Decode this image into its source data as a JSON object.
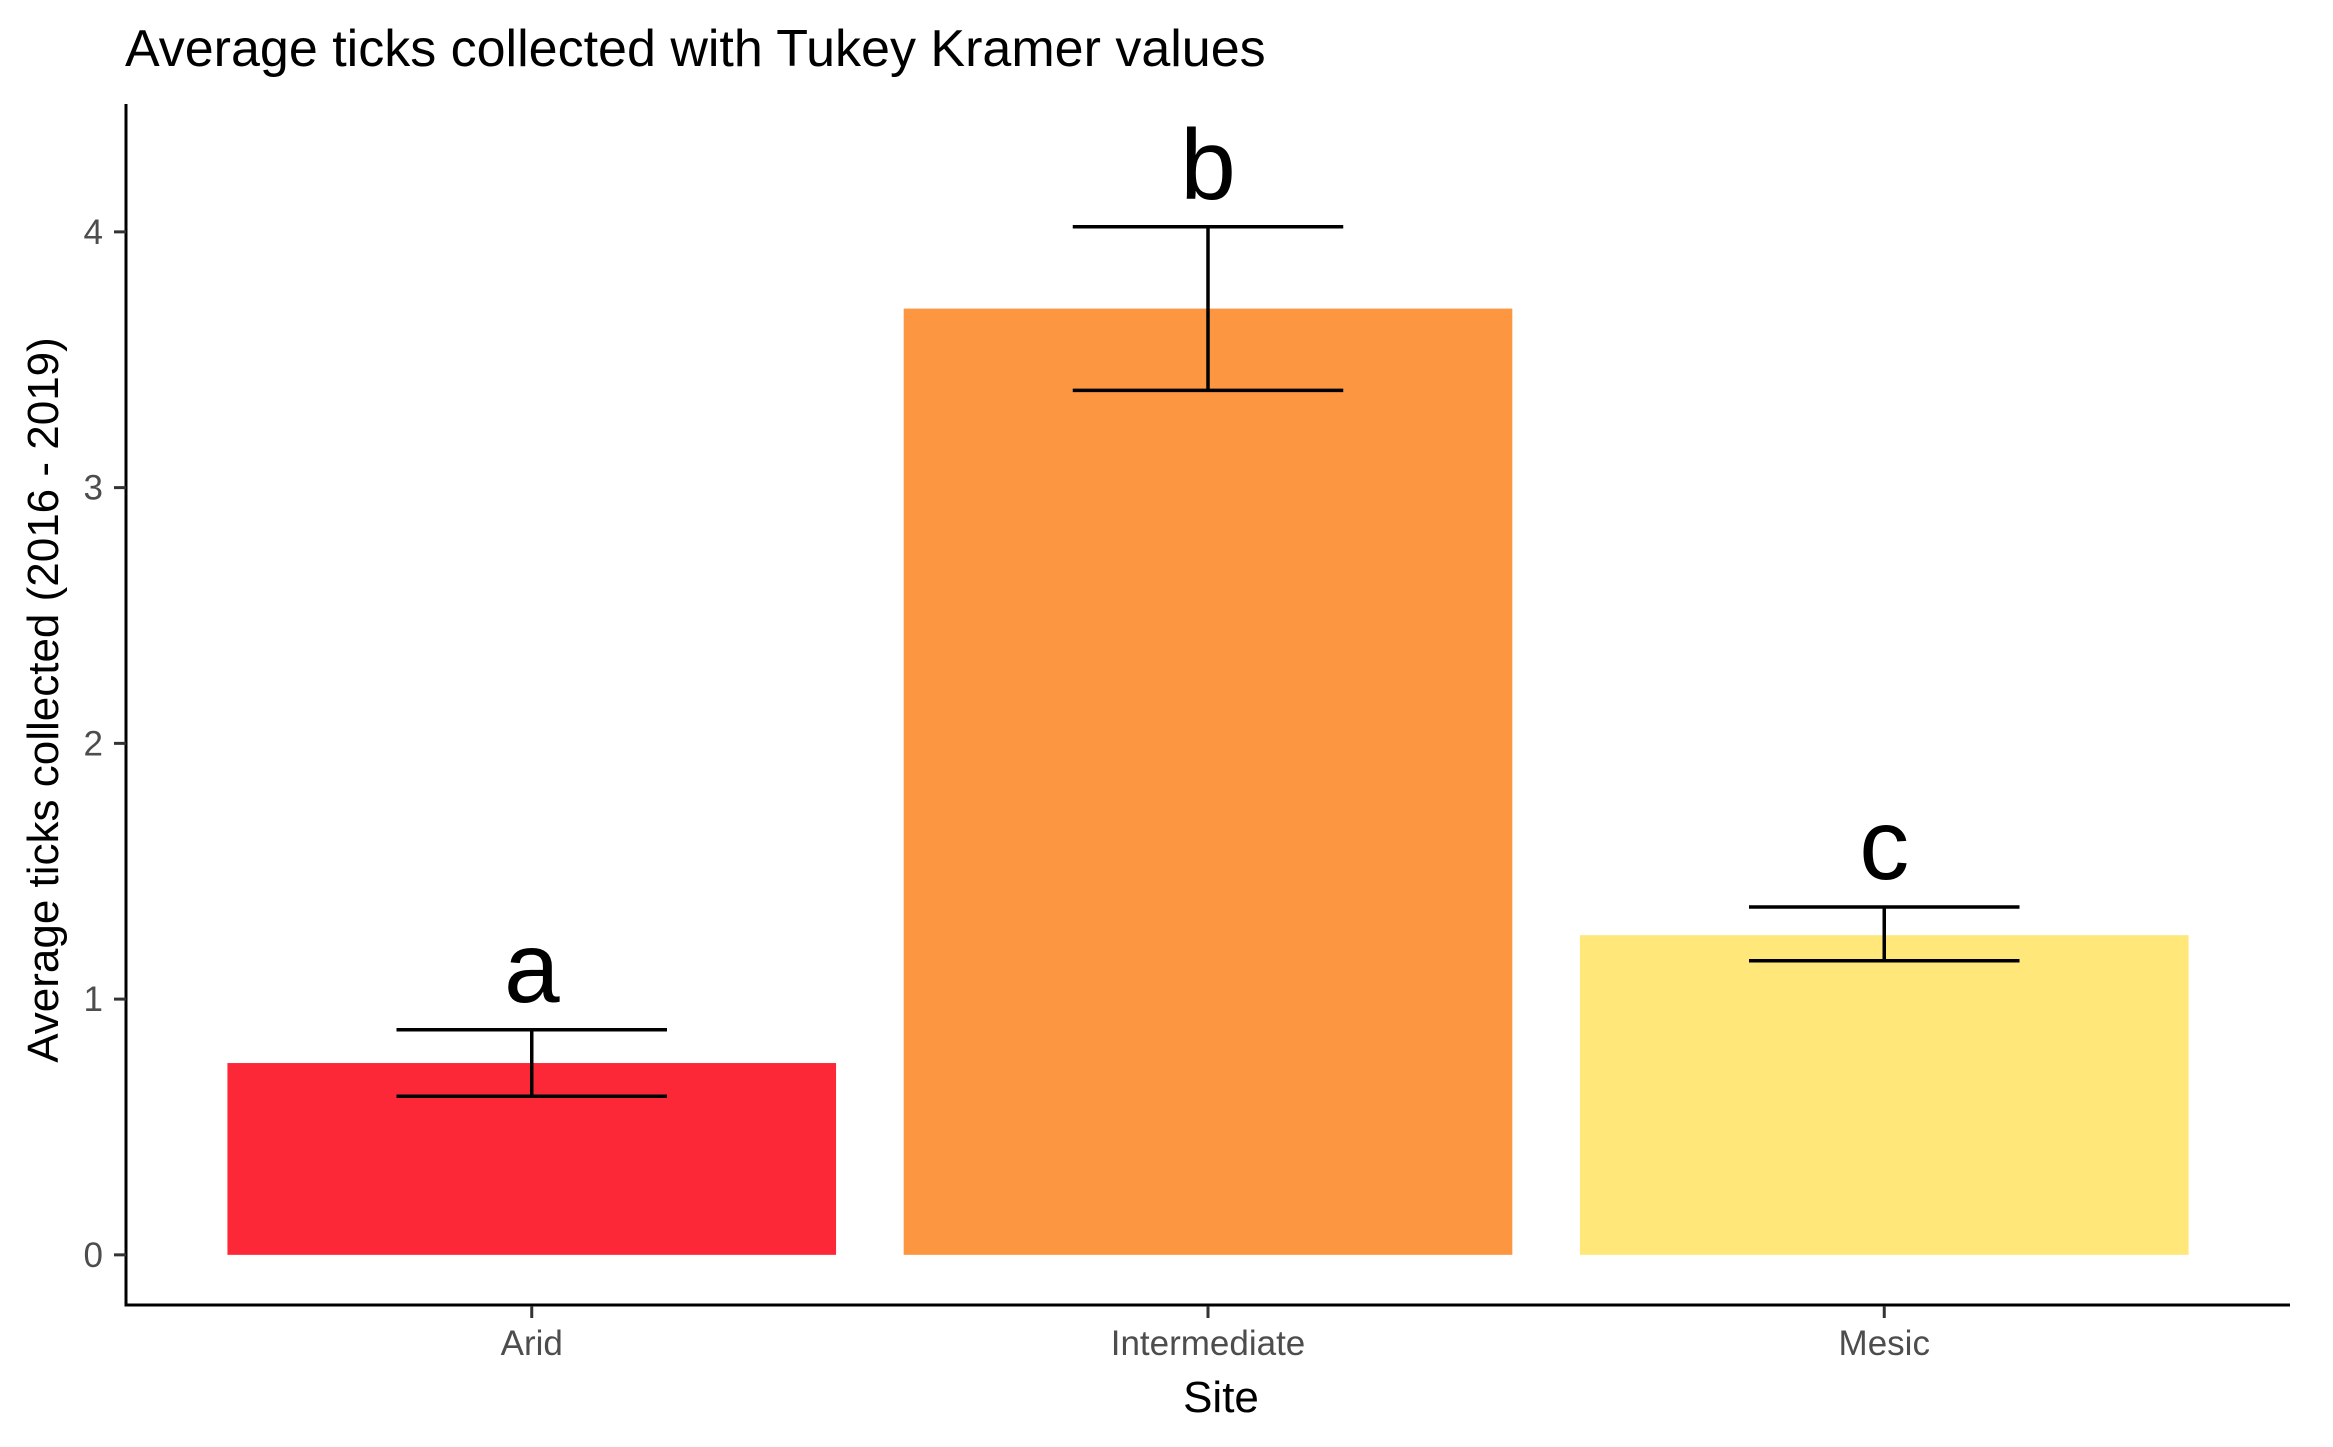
{
  "chart_data": {
    "type": "bar",
    "title": "Average ticks collected with Tukey Kramer values",
    "xlabel": "Site",
    "ylabel": "Average ticks collected (2016 - 2019)",
    "categories": [
      "Arid",
      "Intermediate",
      "Mesic"
    ],
    "values": [
      0.75,
      3.7,
      1.25
    ],
    "error_low": [
      0.62,
      3.38,
      1.15
    ],
    "error_high": [
      0.88,
      4.02,
      1.36
    ],
    "group_letters": [
      "a",
      "b",
      "c"
    ],
    "colors": [
      "#FD2837",
      "#FD9641",
      "#FFE779"
    ],
    "ylim": [
      -0.2,
      4.5
    ],
    "yticks": [
      0,
      1,
      2,
      3,
      4
    ],
    "ytick_labels": [
      "0",
      "1",
      "2",
      "3",
      "4"
    ],
    "grid": false,
    "legend": "none"
  }
}
